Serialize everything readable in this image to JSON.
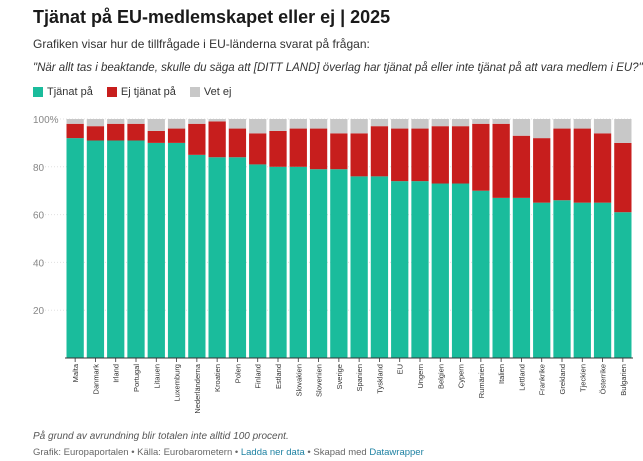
{
  "header": {
    "title": "Tjänat på EU-medlemskapet eller ej | 2025",
    "subtitle": "Grafiken visar hur de tillfrågade i EU-länderna svarat på frågan:",
    "question": "\"När allt tas i beaktande, skulle du säga att [DITT LAND] överlag har tjänat på eller inte tjänat på att vara medlem i EU?\""
  },
  "legend": [
    {
      "label": "Tjänat på",
      "color": "#1abc9c"
    },
    {
      "label": "Ej tjänat på",
      "color": "#c71e1d"
    },
    {
      "label": "Vet ej",
      "color": "#c8c8c8"
    }
  ],
  "footer": {
    "note": "På grund av avrundning blir totalen inte alltid 100 procent.",
    "source_prefix": "Grafik: Europaportalen • Källa: Eurobarometern • ",
    "download_link": "Ladda ner data",
    "made_with": " • Skapad med ",
    "datawrapper_link": "Datawrapper"
  },
  "chart_data": {
    "type": "bar",
    "stacked": true,
    "categories": [
      "Malta",
      "Danmark",
      "Irland",
      "Portugal",
      "Litauen",
      "Luxemburg",
      "Nederländerna",
      "Kroatien",
      "Polen",
      "Finland",
      "Estland",
      "Slovakien",
      "Slovenien",
      "Sverige",
      "Spanien",
      "Tyskland",
      "EU",
      "Ungern",
      "Belgien",
      "Cypern",
      "Rumänien",
      "Italien",
      "Lettland",
      "Frankrike",
      "Grekland",
      "Tjeckien",
      "Österrike",
      "Bulgarien"
    ],
    "series": [
      {
        "name": "Tjänat på",
        "color": "#1abc9c",
        "values": [
          92,
          91,
          91,
          91,
          90,
          90,
          85,
          84,
          84,
          81,
          80,
          80,
          79,
          79,
          76,
          76,
          74,
          74,
          73,
          73,
          70,
          67,
          67,
          65,
          66,
          65,
          65,
          61
        ]
      },
      {
        "name": "Ej tjänat på",
        "color": "#c71e1d",
        "values": [
          6,
          6,
          7,
          7,
          5,
          6,
          13,
          15,
          12,
          13,
          15,
          16,
          17,
          15,
          18,
          21,
          22,
          22,
          24,
          24,
          28,
          31,
          26,
          27,
          30,
          31,
          29,
          29
        ]
      },
      {
        "name": "Vet ej",
        "color": "#c8c8c8",
        "values": [
          2,
          3,
          2,
          2,
          5,
          4,
          2,
          1,
          4,
          6,
          5,
          4,
          4,
          6,
          6,
          3,
          4,
          4,
          3,
          3,
          2,
          2,
          7,
          8,
          4,
          4,
          6,
          10
        ]
      }
    ],
    "yticks": [
      "20",
      "40",
      "60",
      "80",
      "100%"
    ],
    "ylim": [
      0,
      100
    ]
  }
}
